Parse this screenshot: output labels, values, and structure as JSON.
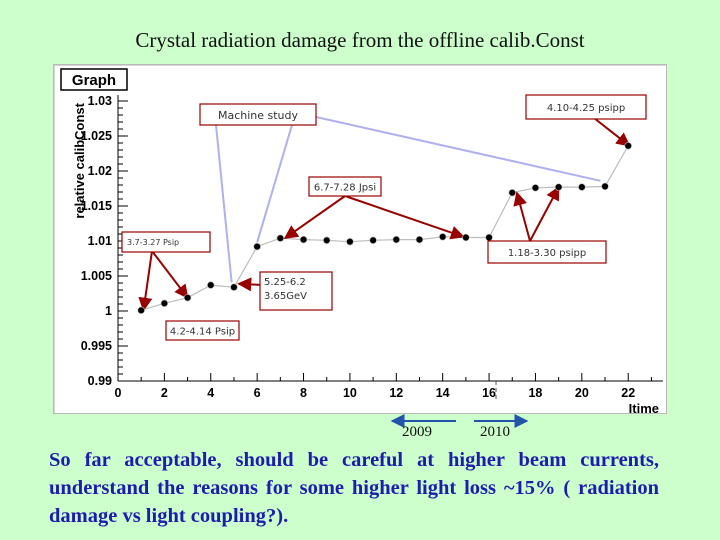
{
  "slide": {
    "title": "Crystal radiation damage from the offline calib.Const",
    "year_left": "2009",
    "year_right": "2010",
    "conclusion": "So far acceptable, should be careful at higher beam currents, understand the reasons for some higher light loss ~15%  ( radiation damage vs light coupling?)."
  },
  "chart_data": {
    "type": "scatter",
    "frame_label": "Graph",
    "xlabel": "Itime",
    "ylabel": "relative calibConst",
    "xlim": [
      0,
      23.5
    ],
    "ylim": [
      0.99,
      1.03
    ],
    "x_ticks": [
      0,
      2,
      4,
      6,
      8,
      10,
      12,
      14,
      16,
      18,
      20,
      22
    ],
    "x_tick_labels": [
      "0",
      "2",
      "4",
      "6",
      "8",
      "10",
      "12",
      "14",
      "16",
      "18",
      "20",
      "22"
    ],
    "y_ticks": [
      0.99,
      0.995,
      1.0,
      1.005,
      1.01,
      1.015,
      1.02,
      1.025,
      1.03
    ],
    "y_tick_labels": [
      "0.99",
      "0.995",
      "1",
      "1.005",
      "1.01",
      "1.015",
      "1.02",
      "1.025",
      "1.03"
    ],
    "series": [
      {
        "marker_color": "#000000",
        "points": [
          {
            "x": 1,
            "y": 1.0001
          },
          {
            "x": 2,
            "y": 1.0011
          },
          {
            "x": 3,
            "y": 1.0019
          },
          {
            "x": 4,
            "y": 1.0037
          },
          {
            "x": 5,
            "y": 1.0034
          },
          {
            "x": 6,
            "y": 1.0092
          },
          {
            "x": 7,
            "y": 1.0104
          },
          {
            "x": 8,
            "y": 1.0102
          },
          {
            "x": 9,
            "y": 1.0101
          },
          {
            "x": 10,
            "y": 1.0099
          },
          {
            "x": 11,
            "y": 1.0101
          },
          {
            "x": 12,
            "y": 1.0102
          },
          {
            "x": 13,
            "y": 1.0102
          },
          {
            "x": 14,
            "y": 1.0106
          },
          {
            "x": 15,
            "y": 1.0105
          },
          {
            "x": 16,
            "y": 1.0105
          },
          {
            "x": 17,
            "y": 1.0169
          },
          {
            "x": 18,
            "y": 1.0176
          },
          {
            "x": 19,
            "y": 1.0177
          },
          {
            "x": 20,
            "y": 1.0177
          },
          {
            "x": 21,
            "y": 1.0178
          },
          {
            "x": 22,
            "y": 1.0236
          }
        ]
      }
    ],
    "annotations": [
      {
        "text": "4.10-4.25 psipp",
        "font_size": 10,
        "arrow_to": [
          [
            22.05,
            1.0236
          ]
        ]
      },
      {
        "text": "Machine study",
        "font_size": 11,
        "arrow_to": [
          [
            5.0,
            1.0034
          ],
          [
            6.1,
            1.0092
          ],
          [
            21.0,
            1.0178
          ]
        ]
      },
      {
        "text": "6.7-7.28 Jpsi",
        "font_size": 10,
        "arrow_to": [
          [
            7.2,
            1.0104
          ],
          [
            14.9,
            1.0106
          ]
        ]
      },
      {
        "text": "3.7-3.27 Psip",
        "font_size": 8,
        "arrow_to": [
          [
            1.1,
            1.0001
          ],
          [
            3.0,
            1.0019
          ]
        ]
      },
      {
        "text": "1.18-3.30 psipp",
        "font_size": 10,
        "arrow_to": [
          [
            17.2,
            1.0169
          ],
          [
            19.0,
            1.0177
          ]
        ]
      },
      {
        "text": "5.25-6.2\n3.65GeV",
        "font_size": 10,
        "arrow_to": [
          [
            5.2,
            1.0039
          ]
        ]
      },
      {
        "text": "4.2-4.14 Psip",
        "font_size": 10,
        "arrow_to": []
      }
    ],
    "divider_x": 16.3,
    "marker_outline_color": "#c0c0c0",
    "annotation_border_color": "#990000",
    "arrow_color": "#990000",
    "grey_line_color": "#b0b0ee",
    "year_arrow_color": "#2255aa",
    "grid": false
  }
}
